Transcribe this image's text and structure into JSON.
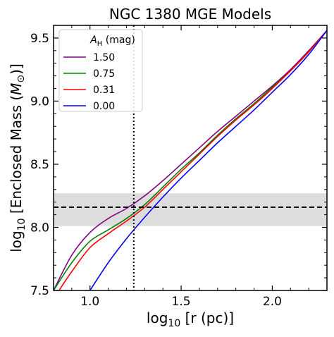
{
  "chart_data": {
    "type": "line",
    "title": "NGC 1380 MGE Models",
    "xlabel": {
      "pre": "log",
      "sub": "10",
      "post": " [r (pc)]"
    },
    "ylabel": {
      "pre": "log",
      "sub": "10",
      "mid": " [Enclosed Mass (",
      "unit": "M",
      "unit_sub": "⊙",
      "post": ")]"
    },
    "xlim": [
      0.8,
      2.3
    ],
    "ylim": [
      7.5,
      9.6
    ],
    "xticks": [
      1.0,
      1.5,
      2.0
    ],
    "xtick_labels": [
      "1.0",
      "1.5",
      "2.0"
    ],
    "yticks": [
      7.5,
      8.0,
      8.5,
      9.0,
      9.5
    ],
    "ytick_labels": [
      "7.5",
      "8.0",
      "8.5",
      "9.0",
      "9.5"
    ],
    "grid": false,
    "legend": {
      "placement": "top-left",
      "title": {
        "sym": "A",
        "sub": "H",
        "unit": " (mag)"
      }
    },
    "reference_band": {
      "y_low": 8.01,
      "y_high": 8.27,
      "color": "#dddddd"
    },
    "reference_hline": {
      "y": 8.16,
      "style": "dashed",
      "color": "#000000"
    },
    "reference_vline": {
      "x": 1.24,
      "style": "dotted",
      "color": "#000000"
    },
    "series": [
      {
        "name": "1.50",
        "color": "#800080",
        "x": [
          0.8,
          0.9,
          1.0,
          1.1,
          1.2,
          1.3,
          1.4,
          1.5,
          1.6,
          1.7,
          1.8,
          1.9,
          2.0,
          2.1,
          2.2,
          2.3
        ],
        "y": [
          7.5,
          7.78,
          7.96,
          8.07,
          8.15,
          8.25,
          8.37,
          8.5,
          8.63,
          8.76,
          8.88,
          9.0,
          9.12,
          9.25,
          9.4,
          9.56
        ]
      },
      {
        "name": "0.75",
        "color": "#008000",
        "x": [
          0.8,
          0.9,
          1.0,
          1.1,
          1.2,
          1.3,
          1.4,
          1.5,
          1.6,
          1.7,
          1.8,
          1.9,
          2.0,
          2.1,
          2.2,
          2.3
        ],
        "y": [
          7.5,
          7.72,
          7.89,
          7.98,
          8.07,
          8.18,
          8.32,
          8.46,
          8.59,
          8.73,
          8.86,
          8.98,
          9.11,
          9.24,
          9.39,
          9.56
        ]
      },
      {
        "name": "0.31",
        "color": "#ff0000",
        "x": [
          0.83,
          0.9,
          1.0,
          1.1,
          1.2,
          1.3,
          1.4,
          1.5,
          1.6,
          1.7,
          1.8,
          1.9,
          2.0,
          2.1,
          2.2,
          2.3
        ],
        "y": [
          7.5,
          7.65,
          7.84,
          7.95,
          8.05,
          8.16,
          8.3,
          8.44,
          8.58,
          8.72,
          8.85,
          8.97,
          9.1,
          9.24,
          9.39,
          9.56
        ]
      },
      {
        "name": "0.00",
        "color": "#0000ff",
        "x": [
          1.0,
          1.1,
          1.2,
          1.3,
          1.4,
          1.5,
          1.6,
          1.7,
          1.8,
          1.9,
          2.0,
          2.1,
          2.2,
          2.3
        ],
        "y": [
          7.5,
          7.72,
          7.91,
          8.08,
          8.24,
          8.39,
          8.53,
          8.67,
          8.8,
          8.93,
          9.07,
          9.21,
          9.37,
          9.56
        ]
      }
    ]
  }
}
